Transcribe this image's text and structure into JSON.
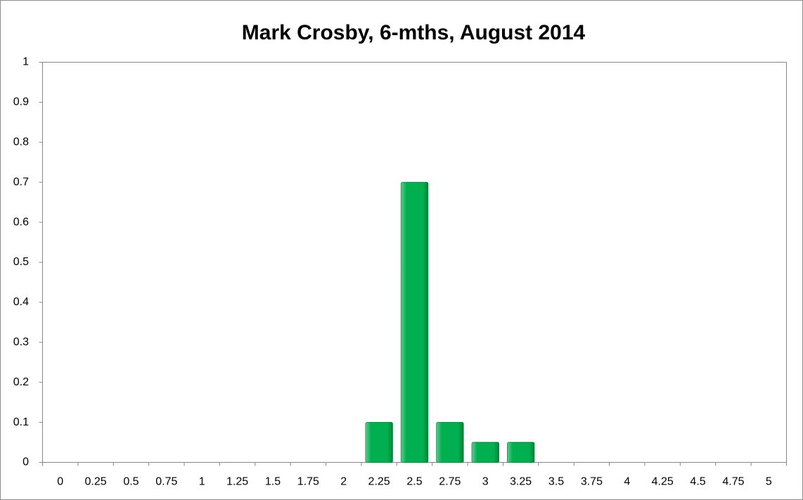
{
  "chart_data": {
    "type": "bar",
    "title": "Mark Crosby, 6-mths, August 2014",
    "categories": [
      "0",
      "0.25",
      "0.5",
      "0.75",
      "1",
      "1.25",
      "1.5",
      "1.75",
      "2",
      "2.25",
      "2.5",
      "2.75",
      "3",
      "3.25",
      "3.5",
      "3.75",
      "4",
      "4.25",
      "4.5",
      "4.75",
      "5"
    ],
    "values": [
      0,
      0,
      0,
      0,
      0,
      0,
      0,
      0,
      0,
      0.1,
      0.7,
      0.1,
      0.05,
      0.05,
      0,
      0,
      0,
      0,
      0,
      0,
      0
    ],
    "color": "#00b050",
    "ylim": [
      0,
      1
    ],
    "yticks": [
      0,
      0.1,
      0.2,
      0.3,
      0.4,
      0.5,
      0.6,
      0.7,
      0.8,
      0.9,
      1
    ],
    "grid": false
  }
}
